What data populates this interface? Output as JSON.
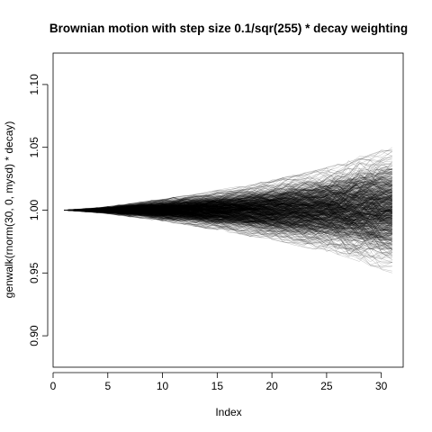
{
  "chart_data": {
    "type": "line",
    "title": "Brownian motion with step size 0.1/sqr(255) * decay weighting",
    "xlabel": "Index",
    "ylabel": "genwalk(rnorm(30, 0, mysd) * decay)",
    "xlim": [
      0,
      32
    ],
    "ylim": [
      0.875,
      1.125
    ],
    "x_ticks": [
      0,
      5,
      10,
      15,
      20,
      25,
      30
    ],
    "y_ticks": [
      0.9,
      0.95,
      1.0,
      1.05,
      1.1
    ],
    "x_tick_labels": [
      "0",
      "5",
      "10",
      "15",
      "20",
      "25",
      "30"
    ],
    "y_tick_labels": [
      "0.90",
      "0.95",
      "1.00",
      "1.05",
      "1.10"
    ],
    "x_range": [
      1,
      31
    ],
    "y_start": 1.0,
    "upper_envelope": [
      [
        1,
        1.0
      ],
      [
        5,
        1.003
      ],
      [
        10,
        1.009
      ],
      [
        15,
        1.016
      ],
      [
        20,
        1.024
      ],
      [
        25,
        1.034
      ],
      [
        28,
        1.043
      ],
      [
        30,
        1.049
      ],
      [
        31,
        1.05
      ]
    ],
    "lower_envelope": [
      [
        1,
        1.0
      ],
      [
        5,
        0.997
      ],
      [
        10,
        0.991
      ],
      [
        15,
        0.984
      ],
      [
        20,
        0.976
      ],
      [
        25,
        0.966
      ],
      [
        28,
        0.958
      ],
      [
        30,
        0.952
      ],
      [
        31,
        0.95
      ]
    ],
    "grid": false,
    "legend": "none",
    "line_color": "#000000"
  }
}
